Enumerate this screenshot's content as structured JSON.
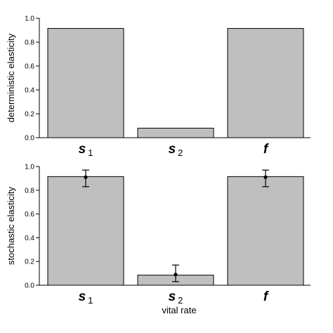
{
  "chart_data": [
    {
      "type": "bar",
      "ylabel": "deterministic elasticity",
      "xlabel": "",
      "ylim": [
        0,
        1.0
      ],
      "yticks": [
        "0.0",
        "0.2",
        "0.4",
        "0.6",
        "0.8",
        "1.0"
      ],
      "categories": [
        {
          "main": "s",
          "sub": "1"
        },
        {
          "main": "s",
          "sub": "2"
        },
        {
          "main": "f",
          "sub": ""
        }
      ],
      "values": [
        0.915,
        0.08,
        0.915
      ]
    },
    {
      "type": "bar",
      "ylabel": "stochastic elasticity",
      "xlabel": "vital rate",
      "ylim": [
        0,
        1.0
      ],
      "yticks": [
        "0.0",
        "0.2",
        "0.4",
        "0.6",
        "0.8",
        "1.0"
      ],
      "categories": [
        {
          "main": "s",
          "sub": "1"
        },
        {
          "main": "s",
          "sub": "2"
        },
        {
          "main": "f",
          "sub": ""
        }
      ],
      "values": [
        0.915,
        0.085,
        0.915
      ],
      "points": [
        0.91,
        0.09,
        0.91
      ],
      "errors": [
        {
          "low": 0.83,
          "high": 0.97
        },
        {
          "low": 0.03,
          "high": 0.17
        },
        {
          "low": 0.83,
          "high": 0.97
        }
      ]
    }
  ]
}
